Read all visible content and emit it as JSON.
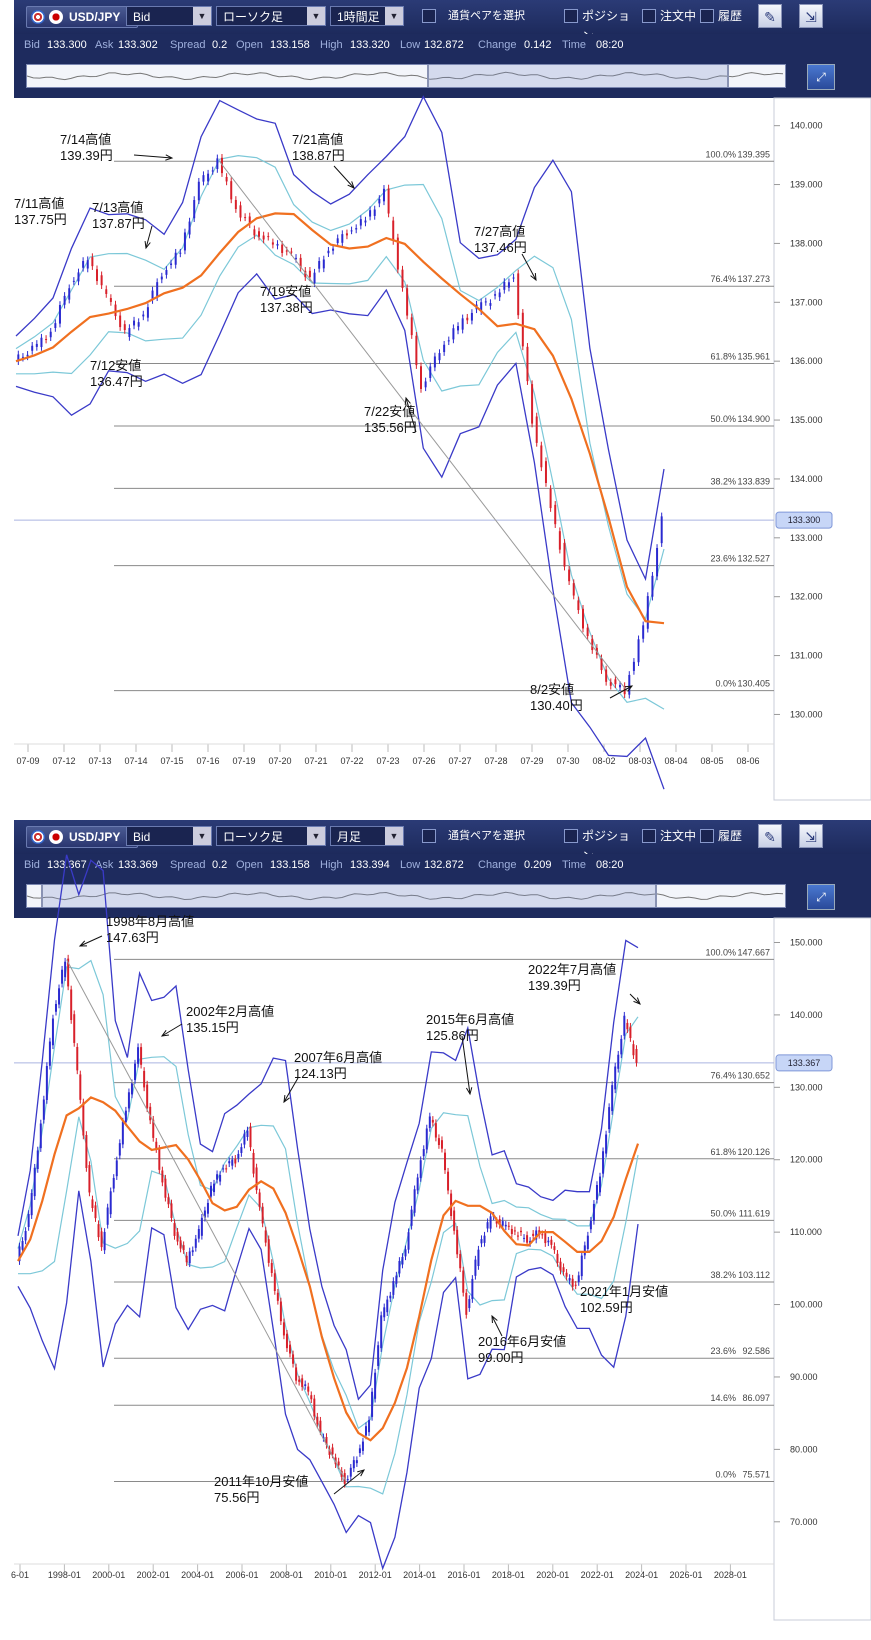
{
  "panels": [
    {
      "toolbar": {
        "symbol": "USD/JPY",
        "price_type": "Bid",
        "chart_type": "ローソク足",
        "timeframe": "1時間足",
        "pair_select": "通貨ペアを選択",
        "positions": "ポジション",
        "orders": "注文中",
        "history": "履歴"
      },
      "quote": {
        "bid_label": "Bid",
        "bid": "133.300",
        "ask_label": "Ask",
        "ask": "133.302",
        "spread_label": "Spread",
        "spread": "0.2",
        "open_label": "Open",
        "open": "133.158",
        "high_label": "High",
        "high": "133.320",
        "low_label": "Low",
        "low": "132.872",
        "change_label": "Change",
        "change": "0.142",
        "time_label": "Time",
        "time": "08:20"
      },
      "chart_data": {
        "type": "candlestick",
        "ylim": [
          129.6,
          140.3
        ],
        "yticks": [
          "140.000",
          "139.000",
          "138.000",
          "137.000",
          "136.000",
          "135.000",
          "134.000",
          "133.000",
          "132.000",
          "131.000",
          "130.000"
        ],
        "xticks": [
          "07-09",
          "07-12",
          "07-13",
          "07-14",
          "07-15",
          "07-16",
          "07-19",
          "07-20",
          "07-21",
          "07-22",
          "07-23",
          "07-26",
          "07-27",
          "07-28",
          "07-29",
          "07-30",
          "08-02",
          "08-03",
          "08-04",
          "08-05",
          "08-06"
        ],
        "current_price": "133.300",
        "fib_levels": [
          {
            "label": "100.0%",
            "value": "139.395"
          },
          {
            "label": "76.4%",
            "value": "137.273"
          },
          {
            "label": "61.8%",
            "value": "135.961"
          },
          {
            "label": "50.0%",
            "value": "134.900"
          },
          {
            "label": "38.2%",
            "value": "133.839"
          },
          {
            "label": "23.6%",
            "value": "132.527"
          },
          {
            "label": "0.0%",
            "value": "130.405"
          }
        ],
        "annotations": [
          {
            "date": "7/14高値",
            "price": "139.39円"
          },
          {
            "date": "7/21高値",
            "price": "138.87円"
          },
          {
            "date": "7/11高値",
            "price": "137.75円"
          },
          {
            "date": "7/13高値",
            "price": "137.87円"
          },
          {
            "date": "7/27高値",
            "price": "137.46円"
          },
          {
            "date": "7/19安値",
            "price": "137.38円"
          },
          {
            "date": "7/12安値",
            "price": "136.47円"
          },
          {
            "date": "7/22安値",
            "price": "135.56円"
          },
          {
            "date": "8/2安値",
            "price": "130.40円"
          }
        ],
        "series": [
          {
            "values": [
              136.0,
              136.2,
              136.5,
              137.3,
              137.75,
              137.1,
              136.47,
              136.8,
              137.5,
              137.87,
              139.0,
              139.39,
              138.6,
              138.2,
              138.0,
              137.8,
              137.38,
              137.9,
              138.2,
              138.4,
              138.87,
              137.2,
              135.56,
              136.2,
              136.6,
              136.9,
              137.1,
              137.46,
              135.0,
              133.5,
              132.2,
              131.3,
              130.6,
              130.4,
              131.5,
              133.3
            ]
          }
        ]
      }
    },
    {
      "toolbar": {
        "symbol": "USD/JPY",
        "price_type": "Bid",
        "chart_type": "ローソク足",
        "timeframe": "月足",
        "pair_select": "通貨ペアを選択",
        "positions": "ポジション",
        "orders": "注文中",
        "history": "履歴"
      },
      "quote": {
        "bid_label": "Bid",
        "bid": "133.367",
        "ask_label": "Ask",
        "ask": "133.369",
        "spread_label": "Spread",
        "spread": "0.2",
        "open_label": "Open",
        "open": "133.158",
        "high_label": "High",
        "high": "133.394",
        "low_label": "Low",
        "low": "132.872",
        "change_label": "Change",
        "change": "0.209",
        "time_label": "Time",
        "time": "08:20"
      },
      "chart_data": {
        "type": "candlestick",
        "ylim": [
          65,
          152
        ],
        "yticks": [
          "150.000",
          "140.000",
          "130.000",
          "120.000",
          "110.000",
          "100.000",
          "90.000",
          "80.000",
          "70.000"
        ],
        "xticks": [
          "6-01",
          "1998-01",
          "2000-01",
          "2002-01",
          "2004-01",
          "2006-01",
          "2008-01",
          "2010-01",
          "2012-01",
          "2014-01",
          "2016-01",
          "2018-01",
          "2020-01",
          "2022-01",
          "2024-01",
          "2026-01",
          "2028-01"
        ],
        "current_price": "133.367",
        "fib_levels": [
          {
            "label": "100.0%",
            "value": "147.667"
          },
          {
            "label": "76.4%",
            "value": "130.652"
          },
          {
            "label": "61.8%",
            "value": "120.126"
          },
          {
            "label": "50.0%",
            "value": "111.619"
          },
          {
            "label": "38.2%",
            "value": "103.112"
          },
          {
            "label": "23.6%",
            "value": "92.586"
          },
          {
            "label": "14.6%",
            "value": "86.097"
          },
          {
            "label": "0.0%",
            "value": "75.571"
          }
        ],
        "annotations": [
          {
            "date": "1998年8月高値",
            "price": "147.63円"
          },
          {
            "date": "2022年7月高値",
            "price": "139.39円"
          },
          {
            "date": "2002年2月高値",
            "price": "135.15円"
          },
          {
            "date": "2015年6月高値",
            "price": "125.86円"
          },
          {
            "date": "2007年6月高値",
            "price": "124.13円"
          },
          {
            "date": "2021年1月安値",
            "price": "102.59円"
          },
          {
            "date": "2016年6月安値",
            "price": "99.00円"
          },
          {
            "date": "2011年10月安値",
            "price": "75.56円"
          }
        ],
        "series": [
          {
            "values": [
              106,
              112,
              125,
              140,
              147.63,
              132,
              115,
              108,
              118,
              127,
              135.15,
              125,
              117,
              110,
              106,
              110,
              116,
              119,
              120,
              124.13,
              113,
              104,
              96,
              90,
              88,
              82,
              79,
              75.56,
              79,
              84,
              98,
              103,
              108,
              118,
              125.86,
              121,
              110,
              99.0,
              108,
              112,
              111,
              110,
              109,
              110,
              108,
              104,
              102.59,
              110,
              118,
              130,
              139.39,
              133.4
            ]
          }
        ]
      }
    }
  ]
}
